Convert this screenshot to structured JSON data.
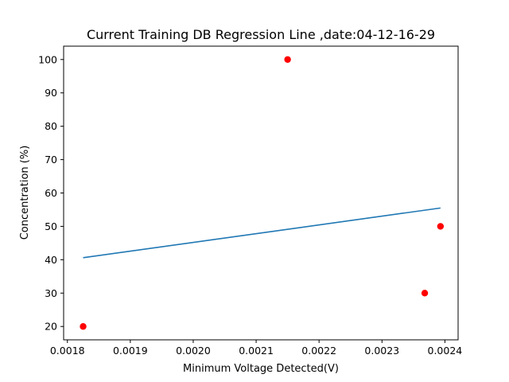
{
  "chart_data": {
    "type": "scatter",
    "title": "Current Training DB Regression Line ,date:04-12-16-29",
    "xlabel": "Minimum Voltage Detected(V)",
    "ylabel": "Concentration (%)",
    "xlim": [
      0.001794,
      0.002421
    ],
    "ylim": [
      16,
      104
    ],
    "xticks": [
      "0.0018",
      "0.0019",
      "0.0020",
      "0.0021",
      "0.0022",
      "0.0023",
      "0.0024"
    ],
    "yticks": [
      "20",
      "30",
      "40",
      "50",
      "60",
      "70",
      "80",
      "90",
      "100"
    ],
    "grid": false,
    "series": [
      {
        "kind": "points",
        "color": "#ff0000",
        "points": [
          {
            "x": 0.001825,
            "y": 20
          },
          {
            "x": 0.00215,
            "y": 100
          },
          {
            "x": 0.002368,
            "y": 30
          },
          {
            "x": 0.002393,
            "y": 50
          }
        ]
      },
      {
        "kind": "line",
        "color": "#1f77b4",
        "points": [
          {
            "x": 0.001825,
            "y": 40.6
          },
          {
            "x": 0.002393,
            "y": 55.5
          }
        ]
      }
    ]
  }
}
